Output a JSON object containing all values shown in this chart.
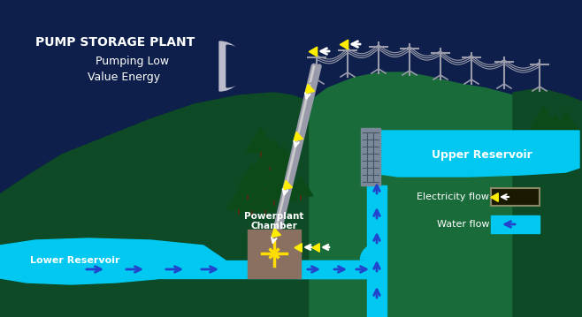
{
  "bg_dark": "#0d1f4a",
  "hill_left_dark": "#0d4a25",
  "hill_left_mid": "#1a6b3a",
  "hill_right": "#1a6b3a",
  "hill_right_dark": "#0d4a25",
  "water_color": "#00c8f0",
  "water_pipe": "#00aadd",
  "arrow_blue": "#2244cc",
  "arrow_white": "#ffffff",
  "yellow_bolt": "#ffee00",
  "moon_color": "#bbbbcc",
  "dam_color": "#7a8899",
  "powerplant_color": "#8a7060",
  "cable_color": "#999aaa",
  "tree_dark": "#0d4a1a",
  "tree_mid": "#1a6b2a",
  "title_line1": "PUMP STORAGE PLANT",
  "title_line2": "Pumping Low",
  "title_line3": "Value Energy",
  "label_upper": "Upper Reservoir",
  "label_lower": "Lower Reservoir",
  "label_powerplant1": "Powerplant",
  "label_powerplant2": "Chamber",
  "legend_elec": "Electricity flow",
  "legend_water": "Water flow"
}
